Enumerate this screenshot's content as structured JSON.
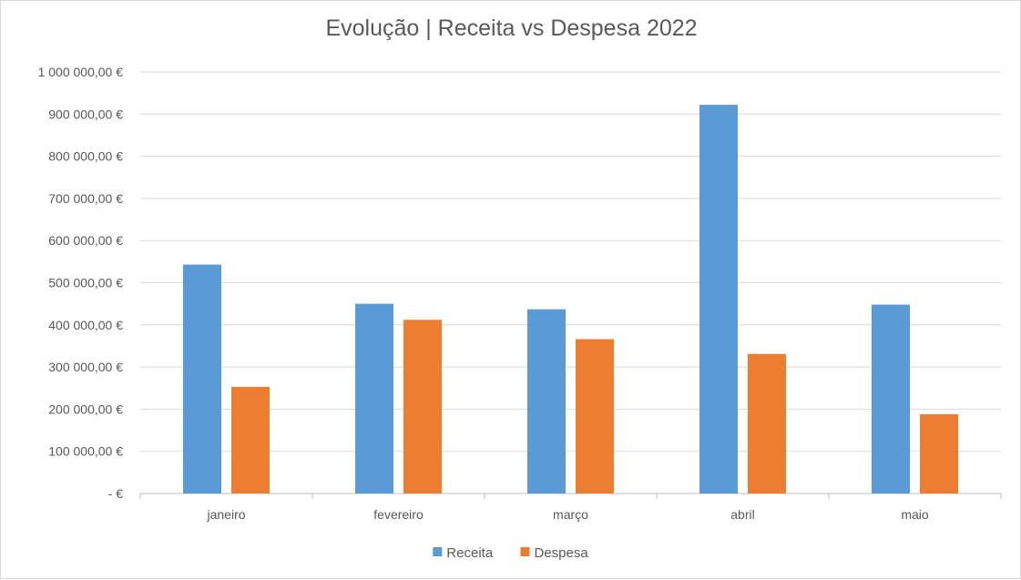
{
  "chart_data": {
    "type": "bar",
    "title": "Evolução | Receita vs Despesa 2022",
    "categories": [
      "janeiro",
      "fevereiro",
      "março",
      "abril",
      "maio"
    ],
    "series": [
      {
        "name": "Receita",
        "color": "#5b9bd5",
        "values": [
          543000,
          450000,
          437000,
          922000,
          448000
        ]
      },
      {
        "name": "Despesa",
        "color": "#ed7d31",
        "values": [
          253000,
          412000,
          366000,
          331000,
          188000
        ]
      }
    ],
    "ylim": [
      0,
      1000000
    ],
    "yticks": [
      0,
      100000,
      200000,
      300000,
      400000,
      500000,
      600000,
      700000,
      800000,
      900000,
      1000000
    ],
    "ytick_labels": [
      "-  €",
      "100 000,00 €",
      "200 000,00 €",
      "300 000,00 €",
      "400 000,00 €",
      "500 000,00 €",
      "600 000,00 €",
      "700 000,00 €",
      "800 000,00 €",
      "900 000,00 €",
      "1 000 000,00 €"
    ],
    "xlabel": "",
    "ylabel": "",
    "grid": true,
    "legend_position": "bottom"
  }
}
